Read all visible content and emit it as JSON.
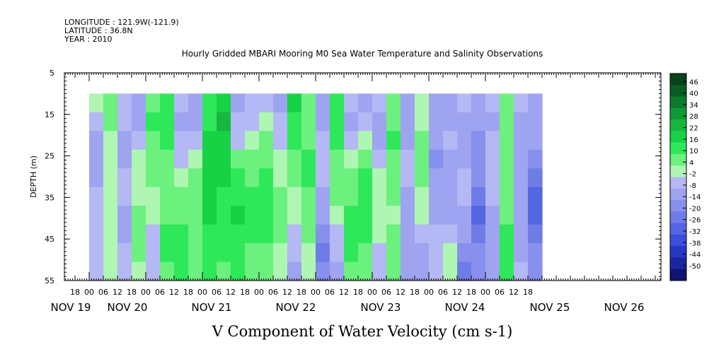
{
  "meta": {
    "longitude": "LONGITUDE : 121.9W(-121.9)",
    "latitude": "LATITUDE : 36.8N",
    "year": "YEAR : 2010"
  },
  "chart_data": {
    "type": "heatmap",
    "title": "Hourly Gridded MBARI Mooring M0 Sea Water Temperature and Salinity Observations",
    "xlabel": "V Component of Water Velocity (cm s-1)",
    "ylabel": "DEPTH (m)",
    "y_ticks": [
      5,
      15,
      25,
      35,
      45,
      55
    ],
    "ylim": [
      5,
      55
    ],
    "data_depth_range": [
      10,
      55
    ],
    "x_hour_ticks": [
      "18",
      "00",
      "06",
      "12",
      "18",
      "00",
      "06",
      "12",
      "18",
      "00",
      "06",
      "12",
      "18",
      "00",
      "06",
      "12",
      "18",
      "00",
      "06",
      "12",
      "18",
      "00",
      "06",
      "12",
      "18",
      "00",
      "06",
      "12",
      "18",
      "00",
      "06",
      "12",
      "18"
    ],
    "x_day_labels": [
      "NOV 19",
      "NOV 20",
      "NOV 21",
      "NOV 22",
      "NOV 23",
      "NOV 24",
      "NOV 25",
      "NOV 26"
    ],
    "colorbar": {
      "ticks": [
        46,
        40,
        34,
        28,
        22,
        16,
        10,
        4,
        -2,
        -8,
        -14,
        -20,
        -26,
        -32,
        -38,
        -44,
        -50
      ],
      "range": [
        -50,
        50
      ],
      "colors": [
        "#08421a",
        "#0a5c22",
        "#0d7a2c",
        "#109a36",
        "#14b83f",
        "#18d246",
        "#2ee85a",
        "#6cf07e",
        "#aef6b2",
        "#b4b8f4",
        "#9ea4f0",
        "#8790ec",
        "#6f7ce8",
        "#5466e2",
        "#3a4fdc",
        "#2638c4",
        "#1a26a0",
        "#0e1470"
      ]
    },
    "series": [
      {
        "name": "",
        "values_note": "",
        "columns": [
          {
            "hour": 0,
            "v": [
              1,
              -4,
              -6,
              -8,
              -7,
              -5,
              -4,
              -3,
              -2,
              -2
            ]
          },
          {
            "hour": 6,
            "v": [
              6,
              6,
              4,
              3,
              3,
              3,
              3,
              4,
              4,
              4
            ]
          },
          {
            "hour": 12,
            "v": [
              -3,
              -5,
              -6,
              -6,
              -5,
              -5,
              -6,
              -6,
              -5,
              -4
            ]
          },
          {
            "hour": 18,
            "v": [
              -6,
              -6,
              -3,
              2,
              4,
              5,
              6,
              6,
              6,
              4
            ]
          },
          {
            "hour": 24,
            "v": [
              10,
              12,
              10,
              8,
              6,
              4,
              2,
              0,
              -2,
              -4
            ]
          },
          {
            "hour": 30,
            "v": [
              14,
              14,
              12,
              10,
              8,
              8,
              10,
              12,
              12,
              10
            ]
          },
          {
            "hour": 36,
            "v": [
              -4,
              -6,
              -4,
              -2,
              4,
              8,
              10,
              12,
              14,
              12
            ]
          },
          {
            "hour": 42,
            "v": [
              -10,
              -8,
              -4,
              2,
              6,
              8,
              10,
              10,
              10,
              8
            ]
          },
          {
            "hour": 48,
            "v": [
              14,
              16,
              20,
              22,
              22,
              20,
              18,
              16,
              14,
              12
            ]
          },
          {
            "hour": 54,
            "v": [
              22,
              24,
              22,
              20,
              18,
              16,
              14,
              12,
              12,
              10
            ]
          },
          {
            "hour": 60,
            "v": [
              -6,
              -4,
              0,
              6,
              12,
              16,
              18,
              16,
              14,
              12
            ]
          },
          {
            "hour": 66,
            "v": [
              -4,
              -2,
              4,
              8,
              10,
              12,
              12,
              12,
              10,
              8
            ]
          },
          {
            "hour": 72,
            "v": [
              -2,
              2,
              6,
              10,
              12,
              14,
              14,
              12,
              10,
              8
            ]
          },
          {
            "hour": 78,
            "v": [
              -6,
              -4,
              0,
              2,
              4,
              6,
              8,
              6,
              4,
              2
            ]
          },
          {
            "hour": 84,
            "v": [
              18,
              16,
              12,
              8,
              6,
              4,
              2,
              -2,
              -4,
              -6
            ]
          },
          {
            "hour": 90,
            "v": [
              6,
              8,
              10,
              12,
              12,
              10,
              8,
              6,
              4,
              4
            ]
          },
          {
            "hour": 96,
            "v": [
              -8,
              -6,
              -4,
              -2,
              -2,
              -6,
              -10,
              -14,
              -18,
              -16
            ]
          },
          {
            "hour": 102,
            "v": [
              14,
              16,
              14,
              10,
              8,
              6,
              4,
              0,
              -4,
              -8
            ]
          },
          {
            "hour": 108,
            "v": [
              -4,
              -6,
              -4,
              2,
              6,
              10,
              12,
              12,
              12,
              10
            ]
          },
          {
            "hour": 114,
            "v": [
              -6,
              -4,
              2,
              8,
              12,
              14,
              14,
              12,
              10,
              8
            ]
          },
          {
            "hour": 120,
            "v": [
              -4,
              -6,
              -8,
              -4,
              2,
              4,
              4,
              2,
              -2,
              -4
            ]
          },
          {
            "hour": 126,
            "v": [
              8,
              10,
              12,
              10,
              8,
              6,
              4,
              6,
              8,
              10
            ]
          },
          {
            "hour": 132,
            "v": [
              -8,
              -8,
              -6,
              -4,
              -4,
              -6,
              -8,
              -10,
              -10,
              -8
            ]
          },
          {
            "hour": 138,
            "v": [
              2,
              4,
              6,
              8,
              6,
              4,
              2,
              -2,
              -6,
              -10
            ]
          },
          {
            "hour": 144,
            "v": [
              -6,
              -8,
              -10,
              -12,
              -10,
              -8,
              -6,
              -4,
              -4,
              -4
            ]
          },
          {
            "hour": 150,
            "v": [
              -8,
              -6,
              -4,
              -6,
              -8,
              -10,
              -6,
              -2,
              2,
              4
            ]
          },
          {
            "hour": 156,
            "v": [
              -4,
              -6,
              -6,
              -6,
              -4,
              -4,
              -6,
              -8,
              -12,
              -18
            ]
          },
          {
            "hour": 162,
            "v": [
              -8,
              -10,
              -12,
              -14,
              -16,
              -20,
              -24,
              -20,
              -16,
              -12
            ]
          },
          {
            "hour": 168,
            "v": [
              -4,
              -6,
              -4,
              -2,
              -2,
              -4,
              -6,
              -8,
              -10,
              -8
            ]
          },
          {
            "hour": 174,
            "v": [
              6,
              6,
              6,
              8,
              8,
              10,
              10,
              12,
              12,
              12
            ]
          },
          {
            "hour": 180,
            "v": [
              -4,
              -6,
              -8,
              -10,
              -10,
              -10,
              -8,
              -6,
              -6,
              -4
            ]
          },
          {
            "hour": 186,
            "v": [
              -6,
              -8,
              -10,
              -14,
              -20,
              -26,
              -24,
              -20,
              -16,
              -12
            ]
          }
        ]
      }
    ]
  }
}
